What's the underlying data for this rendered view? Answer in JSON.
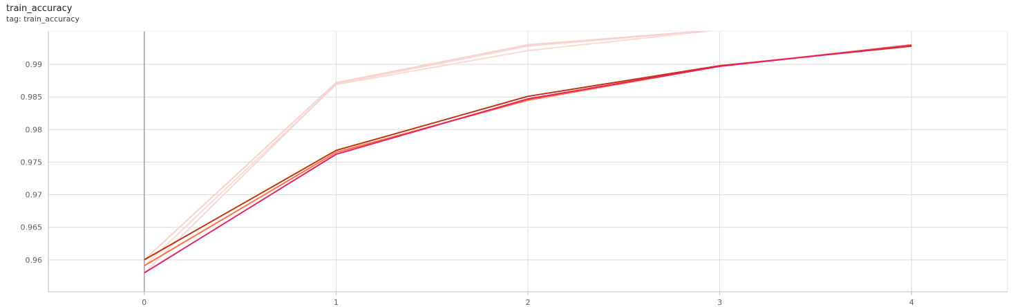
{
  "card": {
    "title": "train_accuracy",
    "subtitle": "tag: train_accuracy"
  },
  "chart_data": {
    "type": "line",
    "title": "train_accuracy",
    "xlabel": "",
    "ylabel": "",
    "x": [
      0,
      1,
      2,
      3,
      4
    ],
    "xlim": [
      -0.5,
      4.5
    ],
    "ylim": [
      0.9551,
      0.9951
    ],
    "xticks": [
      0,
      1,
      2,
      3,
      4
    ],
    "yticks": [
      0.96,
      0.965,
      0.97,
      0.975,
      0.98,
      0.985,
      0.99
    ],
    "ytick_labels": [
      "0.96",
      "0.965",
      "0.97",
      "0.975",
      "0.98",
      "0.985",
      "0.99"
    ],
    "grid": true,
    "series": [
      {
        "values": [
          0.96,
          0.9768,
          0.9851,
          0.9898,
          0.9928
        ],
        "color": "#bf360c"
      },
      {
        "values": [
          0.9591,
          0.9765,
          0.9845,
          0.9897,
          0.993
        ],
        "color": "#ff7043"
      },
      {
        "values": [
          0.958,
          0.9762,
          0.9847,
          0.9897,
          0.9929
        ],
        "color": "#e91e63"
      }
    ],
    "faded_series": [
      {
        "values": [
          0.96,
          0.9872,
          0.993,
          0.9953
        ],
        "color": "#f7cbbd"
      },
      {
        "values": [
          0.9591,
          0.9869,
          0.9921,
          0.9953
        ],
        "color": "#fbd5c9"
      },
      {
        "values": [
          0.958,
          0.987,
          0.9928,
          0.9953
        ],
        "color": "#f8d0d8"
      }
    ]
  }
}
